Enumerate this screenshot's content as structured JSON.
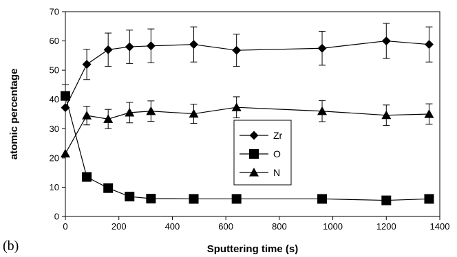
{
  "chart_data": {
    "type": "line",
    "panel_label": "(b)",
    "xlabel": "Sputtering time (s)",
    "ylabel": "atomic percentage",
    "xlim": [
      0,
      1400
    ],
    "ylim": [
      0,
      70
    ],
    "xticks": [
      0,
      200,
      400,
      600,
      800,
      1000,
      1200,
      1400
    ],
    "yticks": [
      0,
      10,
      20,
      30,
      40,
      50,
      60,
      70
    ],
    "grid": false,
    "legend_position": "center-right",
    "series": [
      {
        "name": "Zr",
        "marker": "diamond",
        "x": [
          0,
          80,
          160,
          240,
          320,
          480,
          640,
          960,
          1200,
          1360
        ],
        "y": [
          37.2,
          52,
          57,
          58,
          58.3,
          58.8,
          56.8,
          57.5,
          60,
          58.8
        ],
        "err": [
          0,
          5.2,
          5.7,
          5.7,
          5.8,
          6,
          5.5,
          5.8,
          6,
          6
        ]
      },
      {
        "name": "O",
        "marker": "square",
        "x": [
          0,
          80,
          160,
          240,
          320,
          480,
          640,
          960,
          1200,
          1360
        ],
        "y": [
          41.2,
          13.5,
          9.7,
          6.8,
          6.1,
          6,
          6,
          6,
          5.5,
          6
        ],
        "err": [
          3.8,
          0,
          0,
          0,
          0,
          0,
          0,
          0,
          0,
          0
        ]
      },
      {
        "name": "N",
        "marker": "triangle",
        "x": [
          0,
          80,
          160,
          240,
          320,
          480,
          640,
          960,
          1200,
          1360
        ],
        "y": [
          21.5,
          34.5,
          33.3,
          35.5,
          36,
          35.1,
          37.3,
          36,
          34.6,
          35
        ],
        "err": [
          0,
          3.2,
          3.3,
          3.5,
          3.5,
          3.3,
          3.6,
          3.6,
          3.5,
          3.5
        ]
      }
    ]
  }
}
